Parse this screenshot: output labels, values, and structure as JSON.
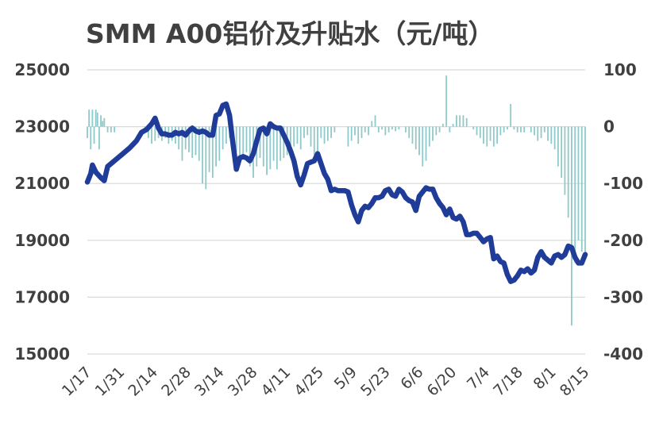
{
  "chart_data": {
    "type": "line",
    "title": "SMM A00铝价及升贴水（元/吨）",
    "x_ticks": [
      "1/17",
      "1/31",
      "2/14",
      "2/28",
      "3/14",
      "3/28",
      "4/11",
      "4/25",
      "5/9",
      "5/23",
      "6/6",
      "6/20",
      "7/4",
      "7/18",
      "8/1",
      "8/15"
    ],
    "y_left": {
      "min": 15000,
      "max": 25000,
      "ticks": [
        25000,
        23000,
        21000,
        19000,
        17000,
        15000
      ]
    },
    "y_right": {
      "min": -400,
      "max": 100,
      "ticks": [
        "100",
        "0",
        "-100",
        "-200",
        "-300",
        "-400"
      ]
    },
    "line_series": {
      "axis": "left",
      "color": "#1f3c99",
      "points": [
        [
          0,
          21050
        ],
        [
          2,
          21350
        ],
        [
          3,
          21650
        ],
        [
          5,
          21400
        ],
        [
          8,
          21200
        ],
        [
          10,
          21100
        ],
        [
          12,
          21600
        ],
        [
          14,
          21700
        ],
        [
          17,
          21850
        ],
        [
          21,
          22050
        ],
        [
          25,
          22250
        ],
        [
          29,
          22500
        ],
        [
          32,
          22800
        ],
        [
          35,
          22900
        ],
        [
          38,
          23100
        ],
        [
          40,
          23300
        ],
        [
          42,
          22950
        ],
        [
          44,
          22750
        ],
        [
          46,
          22750
        ],
        [
          48,
          22700
        ],
        [
          50,
          22700
        ],
        [
          52,
          22800
        ],
        [
          54,
          22750
        ],
        [
          56,
          22800
        ],
        [
          58,
          22700
        ],
        [
          60,
          22850
        ],
        [
          62,
          22950
        ],
        [
          64,
          22850
        ],
        [
          66,
          22800
        ],
        [
          68,
          22850
        ],
        [
          70,
          22800
        ],
        [
          72,
          22700
        ],
        [
          74,
          22700
        ],
        [
          76,
          23400
        ],
        [
          78,
          23450
        ],
        [
          80,
          23750
        ],
        [
          82,
          23800
        ],
        [
          84,
          23400
        ],
        [
          86,
          22400
        ],
        [
          88,
          21500
        ],
        [
          90,
          21900
        ],
        [
          92,
          21950
        ],
        [
          94,
          21900
        ],
        [
          96,
          21800
        ],
        [
          98,
          22050
        ],
        [
          100,
          22500
        ],
        [
          102,
          22900
        ],
        [
          104,
          22950
        ],
        [
          106,
          22750
        ],
        [
          108,
          23100
        ],
        [
          110,
          23000
        ],
        [
          112,
          22950
        ],
        [
          114,
          22950
        ],
        [
          116,
          22700
        ],
        [
          118,
          22450
        ],
        [
          120,
          22150
        ],
        [
          122,
          21800
        ],
        [
          124,
          21250
        ],
        [
          126,
          20950
        ],
        [
          128,
          21300
        ],
        [
          130,
          21700
        ],
        [
          132,
          21750
        ],
        [
          134,
          21800
        ],
        [
          136,
          22050
        ],
        [
          138,
          21700
        ],
        [
          140,
          21350
        ],
        [
          142,
          21150
        ],
        [
          144,
          20750
        ],
        [
          146,
          20800
        ],
        [
          148,
          20750
        ],
        [
          150,
          20750
        ],
        [
          152,
          20750
        ],
        [
          154,
          20700
        ],
        [
          156,
          20250
        ],
        [
          158,
          19900
        ],
        [
          160,
          19650
        ],
        [
          162,
          20050
        ],
        [
          164,
          20200
        ],
        [
          166,
          20150
        ],
        [
          168,
          20300
        ],
        [
          170,
          20500
        ],
        [
          172,
          20500
        ],
        [
          174,
          20550
        ],
        [
          176,
          20750
        ],
        [
          178,
          20800
        ],
        [
          180,
          20600
        ],
        [
          182,
          20550
        ],
        [
          184,
          20800
        ],
        [
          186,
          20700
        ],
        [
          188,
          20500
        ],
        [
          190,
          20400
        ],
        [
          192,
          20350
        ],
        [
          194,
          20050
        ],
        [
          196,
          20550
        ],
        [
          198,
          20700
        ],
        [
          200,
          20850
        ],
        [
          202,
          20800
        ],
        [
          204,
          20800
        ],
        [
          206,
          20500
        ],
        [
          208,
          20300
        ],
        [
          210,
          20150
        ],
        [
          212,
          19900
        ],
        [
          214,
          20100
        ],
        [
          216,
          19800
        ],
        [
          218,
          19750
        ],
        [
          220,
          19850
        ],
        [
          222,
          19650
        ],
        [
          224,
          19200
        ],
        [
          226,
          19200
        ],
        [
          228,
          19250
        ],
        [
          230,
          19250
        ],
        [
          232,
          19100
        ],
        [
          234,
          18950
        ],
        [
          236,
          19050
        ],
        [
          238,
          19100
        ],
        [
          240,
          18350
        ],
        [
          242,
          18450
        ],
        [
          244,
          18250
        ],
        [
          246,
          18200
        ],
        [
          248,
          17800
        ],
        [
          250,
          17550
        ],
        [
          252,
          17600
        ],
        [
          254,
          17750
        ],
        [
          256,
          17950
        ],
        [
          258,
          17900
        ],
        [
          260,
          18000
        ],
        [
          262,
          17850
        ],
        [
          264,
          17950
        ],
        [
          266,
          18400
        ],
        [
          268,
          18600
        ],
        [
          270,
          18400
        ],
        [
          272,
          18300
        ],
        [
          274,
          18200
        ],
        [
          276,
          18450
        ],
        [
          278,
          18500
        ],
        [
          280,
          18400
        ],
        [
          282,
          18500
        ],
        [
          284,
          18800
        ],
        [
          286,
          18750
        ],
        [
          288,
          18400
        ],
        [
          290,
          18200
        ],
        [
          292,
          18200
        ],
        [
          294,
          18500
        ]
      ]
    },
    "bar_series": {
      "axis": "right",
      "color": "#8fc9c9",
      "points": [
        [
          0,
          -20
        ],
        [
          1,
          30
        ],
        [
          2,
          -40
        ],
        [
          3,
          30
        ],
        [
          4,
          -30
        ],
        [
          5,
          30
        ],
        [
          6,
          25
        ],
        [
          7,
          -40
        ],
        [
          8,
          20
        ],
        [
          9,
          10
        ],
        [
          10,
          15
        ],
        [
          12,
          -10
        ],
        [
          14,
          -10
        ],
        [
          16,
          -10
        ],
        [
          34,
          -10
        ],
        [
          36,
          -20
        ],
        [
          38,
          -30
        ],
        [
          40,
          -25
        ],
        [
          42,
          -20
        ],
        [
          44,
          -25
        ],
        [
          46,
          -20
        ],
        [
          48,
          -30
        ],
        [
          50,
          -25
        ],
        [
          52,
          -30
        ],
        [
          54,
          -40
        ],
        [
          56,
          -60
        ],
        [
          58,
          -40
        ],
        [
          60,
          -45
        ],
        [
          62,
          -55
        ],
        [
          64,
          -50
        ],
        [
          66,
          -60
        ],
        [
          68,
          -100
        ],
        [
          70,
          -110
        ],
        [
          72,
          -80
        ],
        [
          74,
          -90
        ],
        [
          76,
          -70
        ],
        [
          78,
          -60
        ],
        [
          80,
          -40
        ],
        [
          82,
          -30
        ],
        [
          84,
          -20
        ],
        [
          86,
          -55
        ],
        [
          88,
          -45
        ],
        [
          90,
          -65
        ],
        [
          92,
          -55
        ],
        [
          94,
          -45
        ],
        [
          96,
          -70
        ],
        [
          98,
          -90
        ],
        [
          100,
          -70
        ],
        [
          102,
          -55
        ],
        [
          104,
          -70
        ],
        [
          106,
          -85
        ],
        [
          108,
          -75
        ],
        [
          110,
          -60
        ],
        [
          112,
          -75
        ],
        [
          114,
          -60
        ],
        [
          116,
          -55
        ],
        [
          118,
          -50
        ],
        [
          120,
          -45
        ],
        [
          122,
          -35
        ],
        [
          124,
          -30
        ],
        [
          126,
          -40
        ],
        [
          128,
          -20
        ],
        [
          130,
          -15
        ],
        [
          132,
          -35
        ],
        [
          134,
          -50
        ],
        [
          136,
          -45
        ],
        [
          138,
          -20
        ],
        [
          140,
          -30
        ],
        [
          142,
          -25
        ],
        [
          144,
          -20
        ],
        [
          146,
          -10
        ],
        [
          154,
          -35
        ],
        [
          156,
          -25
        ],
        [
          158,
          -15
        ],
        [
          160,
          -30
        ],
        [
          162,
          -20
        ],
        [
          164,
          -10
        ],
        [
          166,
          -15
        ],
        [
          168,
          10
        ],
        [
          170,
          20
        ],
        [
          172,
          -10
        ],
        [
          174,
          -5
        ],
        [
          176,
          -15
        ],
        [
          178,
          -10
        ],
        [
          180,
          -5
        ],
        [
          182,
          -8
        ],
        [
          184,
          -5
        ],
        [
          188,
          -10
        ],
        [
          190,
          -20
        ],
        [
          192,
          -30
        ],
        [
          194,
          -40
        ],
        [
          196,
          -50
        ],
        [
          198,
          -70
        ],
        [
          200,
          -60
        ],
        [
          202,
          -35
        ],
        [
          204,
          -25
        ],
        [
          206,
          -15
        ],
        [
          208,
          -10
        ],
        [
          210,
          5
        ],
        [
          212,
          90
        ],
        [
          214,
          -10
        ],
        [
          216,
          5
        ],
        [
          218,
          20
        ],
        [
          220,
          20
        ],
        [
          222,
          20
        ],
        [
          224,
          15
        ],
        [
          228,
          -5
        ],
        [
          230,
          -15
        ],
        [
          232,
          -20
        ],
        [
          234,
          -30
        ],
        [
          236,
          -35
        ],
        [
          238,
          -25
        ],
        [
          240,
          -35
        ],
        [
          242,
          -30
        ],
        [
          244,
          -15
        ],
        [
          246,
          -10
        ],
        [
          248,
          -5
        ],
        [
          250,
          40
        ],
        [
          252,
          -5
        ],
        [
          254,
          -10
        ],
        [
          256,
          -10
        ],
        [
          258,
          -10
        ],
        [
          262,
          -10
        ],
        [
          264,
          -15
        ],
        [
          266,
          -25
        ],
        [
          268,
          -20
        ],
        [
          270,
          -10
        ],
        [
          272,
          -25
        ],
        [
          274,
          -30
        ],
        [
          276,
          -40
        ],
        [
          278,
          -70
        ],
        [
          280,
          -90
        ],
        [
          282,
          -120
        ],
        [
          284,
          -160
        ],
        [
          286,
          -350
        ],
        [
          288,
          -240
        ],
        [
          290,
          -200
        ],
        [
          292,
          -220
        ],
        [
          294,
          -230
        ]
      ]
    },
    "x_max": 294,
    "legend": "none",
    "grid": true
  }
}
